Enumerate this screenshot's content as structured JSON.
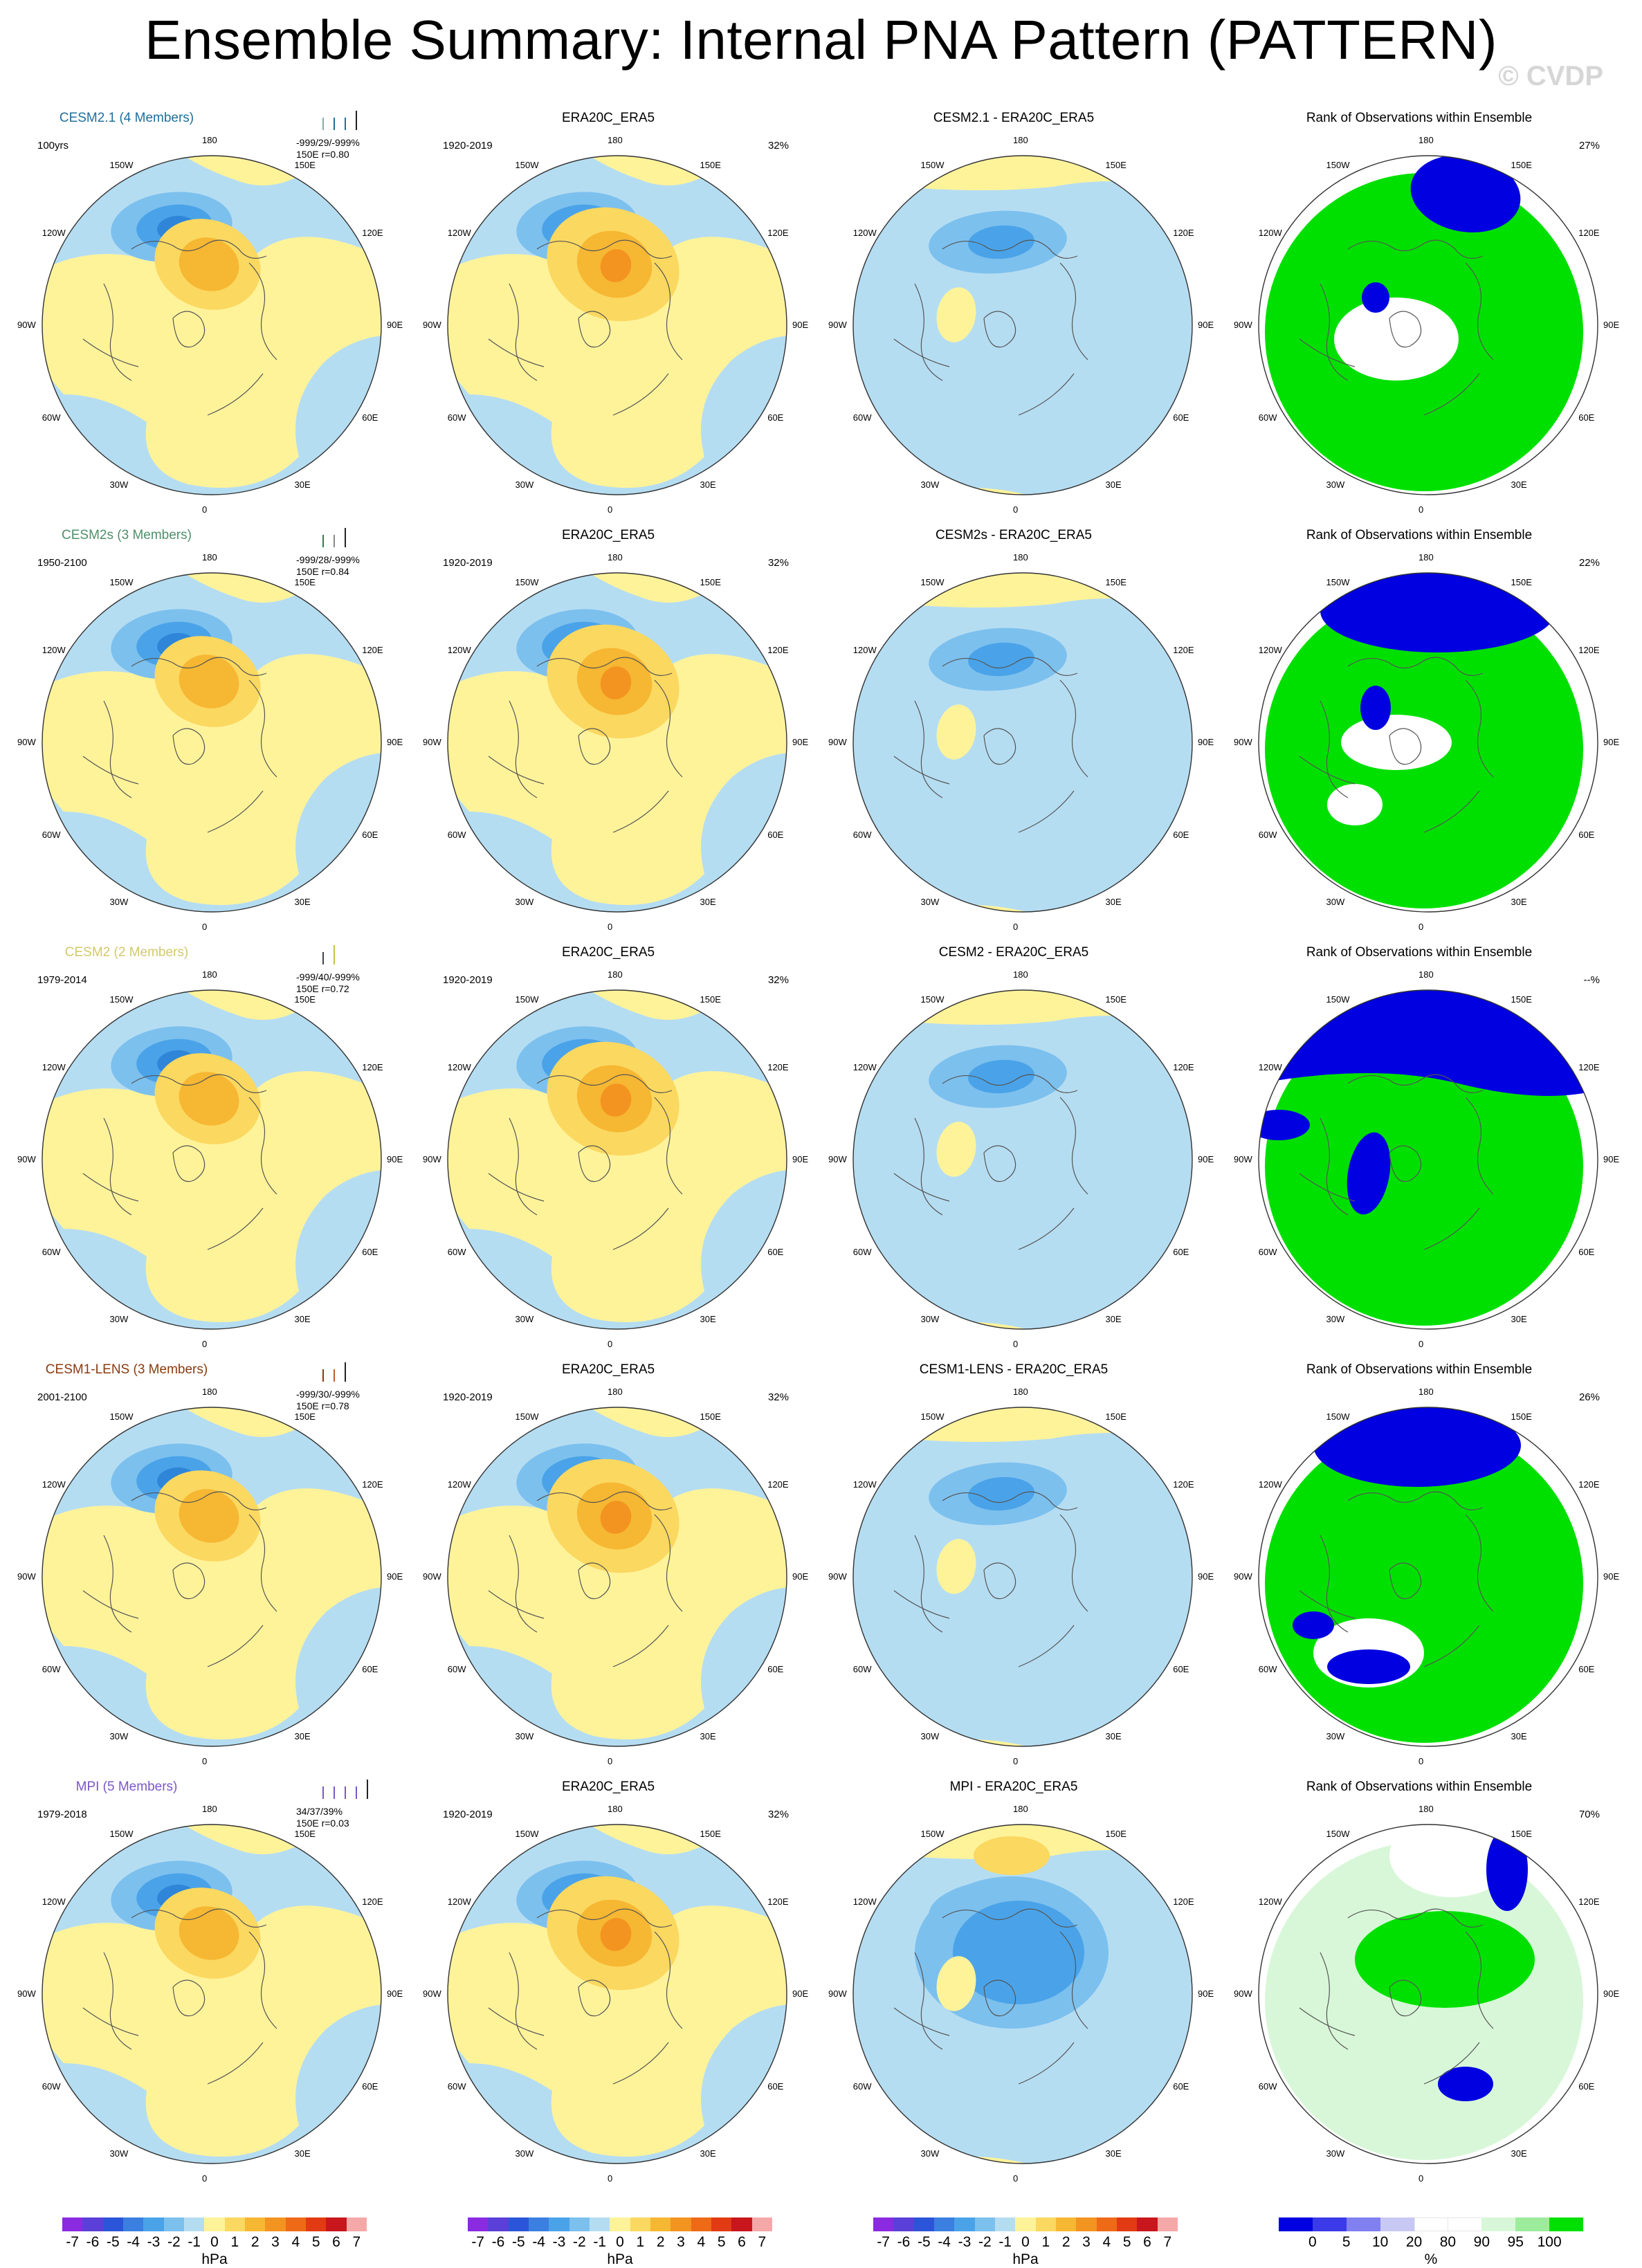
{
  "title": "Ensemble Summary: Internal PNA Pattern (PATTERN)",
  "watermark": "© CVDP",
  "lon_labels": [
    "180",
    "150E",
    "120E",
    "90E",
    "60E",
    "30E",
    "0",
    "30W",
    "60W",
    "90W",
    "120W",
    "150W"
  ],
  "rows": [
    {
      "model": {
        "title": "CESM2.1 (4 Members)",
        "color": "#1f6f9c",
        "period": "100yrs",
        "stats": "-999/29/-999%",
        "stats2": "150E  r=0.80",
        "ticks": [
          "#8aa",
          "#1f6f9c",
          "#1f6f9c",
          "#222"
        ]
      },
      "obs": {
        "title": "ERA20C_ERA5",
        "period": "1920-2019",
        "pct": "32%"
      },
      "diff": {
        "title": "CESM2.1 - ERA20C_ERA5"
      },
      "rank": {
        "title": "Rank of Observations within Ensemble",
        "pct": "27%"
      }
    },
    {
      "model": {
        "title": "CESM2s (3 Members)",
        "color": "#4f8f6a",
        "period": "1950-2100",
        "stats": "-999/28/-999%",
        "stats2": "150E  r=0.84",
        "ticks": [
          "#2f7f4a",
          "#888",
          "#222"
        ]
      },
      "obs": {
        "title": "ERA20C_ERA5",
        "period": "1920-2019",
        "pct": "32%"
      },
      "diff": {
        "title": "CESM2s - ERA20C_ERA5"
      },
      "rank": {
        "title": "Rank of Observations within Ensemble",
        "pct": "22%"
      }
    },
    {
      "model": {
        "title": "CESM2 (2 Members)",
        "color": "#d4c86a",
        "period": "1979-2014",
        "stats": "-999/40/-999%",
        "stats2": "150E  r=0.72",
        "ticks": [
          "#444",
          "#c8c040"
        ]
      },
      "obs": {
        "title": "ERA20C_ERA5",
        "period": "1920-2019",
        "pct": "32%"
      },
      "diff": {
        "title": "CESM2 - ERA20C_ERA5"
      },
      "rank": {
        "title": "Rank of Observations within Ensemble",
        "pct": "--%"
      }
    },
    {
      "model": {
        "title": "CESM1-LENS (3 Members)",
        "color": "#8a3a10",
        "period": "2001-2100",
        "stats": "-999/30/-999%",
        "stats2": "150E  r=0.78",
        "ticks": [
          "#8a3a10",
          "#c0602a",
          "#222"
        ]
      },
      "obs": {
        "title": "ERA20C_ERA5",
        "period": "1920-2019",
        "pct": "32%"
      },
      "diff": {
        "title": "CESM1-LENS - ERA20C_ERA5"
      },
      "rank": {
        "title": "Rank of Observations within Ensemble",
        "pct": "26%"
      }
    },
    {
      "model": {
        "title": "MPI (5 Members)",
        "color": "#7b57c9",
        "period": "1979-2018",
        "stats": "34/37/39%",
        "stats2": "150E   r=0.03",
        "ticks": [
          "#7b57c9",
          "#7b57c9",
          "#7b57c9",
          "#7b57c9",
          "#222"
        ]
      },
      "obs": {
        "title": "ERA20C_ERA5",
        "period": "1920-2019",
        "pct": "32%"
      },
      "diff": {
        "title": "MPI - ERA20C_ERA5"
      },
      "rank": {
        "title": "Rank of Observations within Ensemble",
        "pct": "70%"
      }
    }
  ],
  "colorbar_hpa": {
    "colors": [
      "#8a2be2",
      "#5a3fd8",
      "#2b55d8",
      "#3b7fe0",
      "#4aa3e8",
      "#7cc0ee",
      "#b5ddf2",
      "#fff39a",
      "#fbd860",
      "#f6b732",
      "#f39320",
      "#ee6a17",
      "#e23a12",
      "#c8161c",
      "#f5a8a8"
    ],
    "labels": [
      "-7",
      "-6",
      "-5",
      "-4",
      "-3",
      "-2",
      "-1",
      "0",
      "1",
      "2",
      "3",
      "4",
      "5",
      "6",
      "7"
    ],
    "unit": "hPa"
  },
  "colorbar_rank": {
    "colors": [
      "#0000e0",
      "#3a3ae8",
      "#8080f0",
      "#c8c8f4",
      "#ffffff",
      "#ffffff",
      "#d8f7d8",
      "#9cec9c",
      "#00e000"
    ],
    "labels": [
      "0",
      "5",
      "10",
      "20",
      "80",
      "90",
      "95",
      "100"
    ],
    "unit": "%"
  }
}
